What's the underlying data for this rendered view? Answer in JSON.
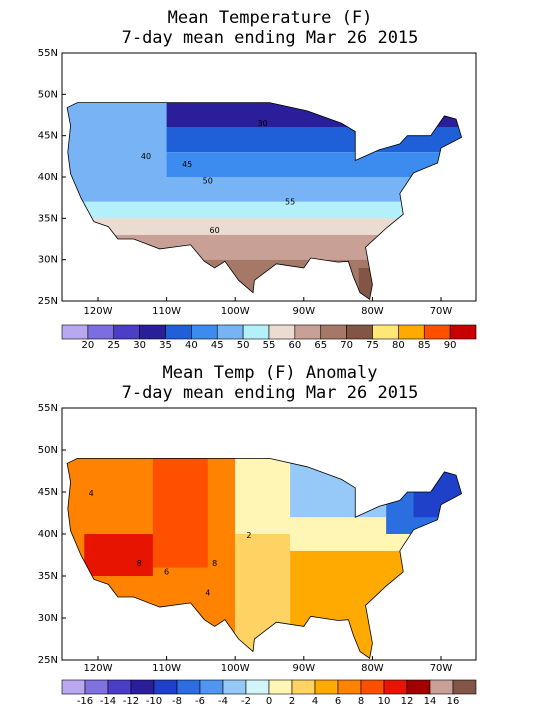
{
  "panels": [
    {
      "title": "Mean Temperature (F)",
      "subtitle": "7-day mean ending Mar 26 2015",
      "lat_labels": [
        "55N",
        "50N",
        "45N",
        "40N",
        "35N",
        "30N",
        "25N"
      ],
      "lon_labels": [
        "120W",
        "110W",
        "100W",
        "90W",
        "80W",
        "70W"
      ],
      "contour_labels": [
        "30",
        "40",
        "45",
        "50",
        "55",
        "60"
      ],
      "colorbar": {
        "colors": [
          "#b9a8f0",
          "#7b6ee0",
          "#4b3fc8",
          "#2a1e9a",
          "#1f5fd8",
          "#3c8cf0",
          "#78b4f5",
          "#b4f0fa",
          "#ebdcd2",
          "#c8a096",
          "#a57868",
          "#825546",
          "#ffe878",
          "#ffaa00",
          "#ff5000",
          "#c80000"
        ],
        "labels": [
          "20",
          "25",
          "30",
          "35",
          "40",
          "45",
          "50",
          "55",
          "60",
          "65",
          "70",
          "75",
          "80",
          "85",
          "90"
        ]
      }
    },
    {
      "title": "Mean Temp (F) Anomaly",
      "subtitle": "7-day mean ending Mar 26 2015",
      "lat_labels": [
        "55N",
        "50N",
        "45N",
        "40N",
        "35N",
        "30N",
        "25N"
      ],
      "lon_labels": [
        "120W",
        "110W",
        "100W",
        "90W",
        "80W",
        "70W"
      ],
      "contour_labels": [
        "4",
        "8",
        "6",
        "8",
        "2",
        "4"
      ],
      "colorbar": {
        "colors": [
          "#b9a8f0",
          "#8070e0",
          "#4b3fc8",
          "#2a1e9a",
          "#1f40c8",
          "#2a6ee0",
          "#5096f0",
          "#96c8f8",
          "#d2f5fa",
          "#fff5b4",
          "#ffd264",
          "#ffaa00",
          "#ff8200",
          "#ff5000",
          "#e61400",
          "#a00000",
          "#c8a096",
          "#825546"
        ],
        "labels": [
          "-16",
          "-14",
          "-12",
          "-10",
          "-8",
          "-6",
          "-4",
          "-2",
          "0",
          "2",
          "4",
          "6",
          "8",
          "10",
          "12",
          "14",
          "16"
        ]
      }
    }
  ]
}
